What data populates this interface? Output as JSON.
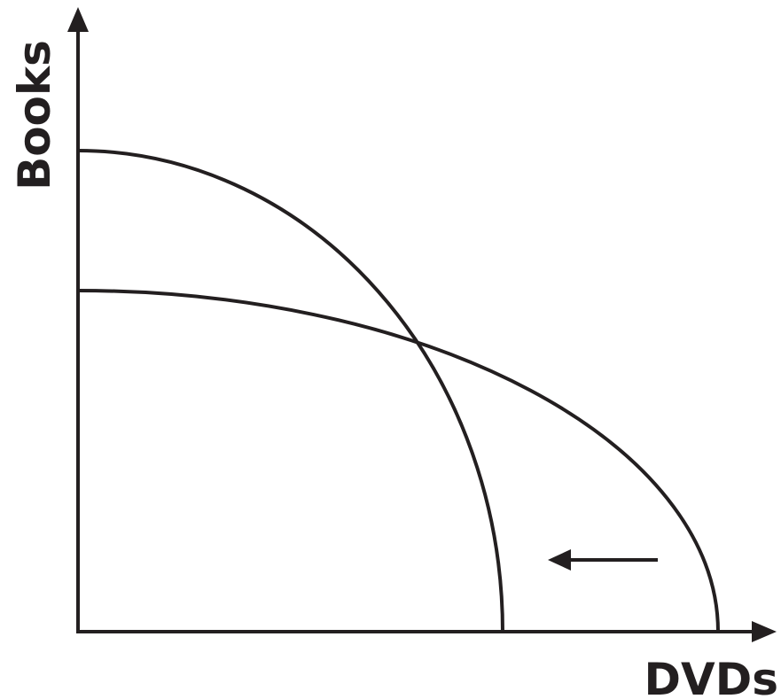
{
  "axes": {
    "y_label": "Books",
    "x_label": "DVDs"
  }
}
